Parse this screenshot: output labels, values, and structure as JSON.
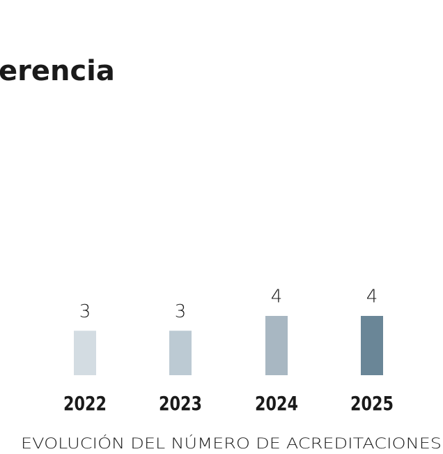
{
  "title": "erencia",
  "chart_data": {
    "type": "bar",
    "categories": [
      "2022",
      "2023",
      "2024",
      "2025"
    ],
    "values": [
      3,
      3,
      4,
      4
    ],
    "colors": [
      "#d3dce2",
      "#bccad3",
      "#a8b7c2",
      "#6a8697"
    ],
    "xlabel": "EVOLUCIÓN DEL NÚMERO DE ACREDITACIONES"
  }
}
